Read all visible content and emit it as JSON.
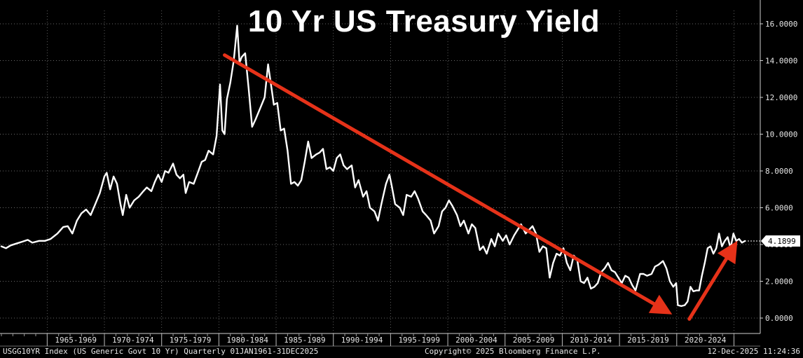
{
  "chart_data": {
    "type": "line",
    "title": "10 Yr US Treasury Yield",
    "x_range": [
      1961,
      2025.95
    ],
    "ylim": [
      0,
      17
    ],
    "y_ticks": [
      {
        "value": 0,
        "label": "0.0000"
      },
      {
        "value": 2,
        "label": "2.0000"
      },
      {
        "value": 4,
        "label": "4.0000"
      },
      {
        "value": 6,
        "label": "6.0000"
      },
      {
        "value": 8,
        "label": "8.0000"
      },
      {
        "value": 10,
        "label": "10.0000"
      },
      {
        "value": 12,
        "label": "12.0000"
      },
      {
        "value": 14,
        "label": "14.0000"
      },
      {
        "value": 16,
        "label": "16.0000"
      }
    ],
    "x_categories": [
      {
        "label": "1965-1969",
        "start": 1965,
        "end": 1970
      },
      {
        "label": "1970-1974",
        "start": 1970,
        "end": 1975
      },
      {
        "label": "1975-1979",
        "start": 1975,
        "end": 1980
      },
      {
        "label": "1980-1984",
        "start": 1980,
        "end": 1985
      },
      {
        "label": "1985-1989",
        "start": 1985,
        "end": 1990
      },
      {
        "label": "1990-1994",
        "start": 1990,
        "end": 1995
      },
      {
        "label": "1995-1999",
        "start": 1995,
        "end": 2000
      },
      {
        "label": "2000-2004",
        "start": 2000,
        "end": 2005
      },
      {
        "label": "2005-2009",
        "start": 2005,
        "end": 2010
      },
      {
        "label": "2010-2014",
        "start": 2010,
        "end": 2015
      },
      {
        "label": "2015-2019",
        "start": 2015,
        "end": 2020
      },
      {
        "label": "2020-2024",
        "start": 2020,
        "end": 2025
      }
    ],
    "grid": true,
    "series": [
      {
        "color": "#ffffff",
        "points": [
          [
            1961.0,
            3.9
          ],
          [
            1961.4,
            3.8
          ],
          [
            1961.8,
            3.95
          ],
          [
            1962.3,
            4.05
          ],
          [
            1962.8,
            4.15
          ],
          [
            1963.3,
            4.25
          ],
          [
            1963.7,
            4.1
          ],
          [
            1964.3,
            4.2
          ],
          [
            1964.8,
            4.2
          ],
          [
            1965.3,
            4.3
          ],
          [
            1965.9,
            4.6
          ],
          [
            1966.4,
            4.95
          ],
          [
            1966.8,
            5.0
          ],
          [
            1967.2,
            4.6
          ],
          [
            1967.6,
            5.3
          ],
          [
            1968.0,
            5.7
          ],
          [
            1968.4,
            5.9
          ],
          [
            1968.8,
            5.6
          ],
          [
            1969.2,
            6.2
          ],
          [
            1969.6,
            6.8
          ],
          [
            1970.0,
            7.7
          ],
          [
            1970.2,
            7.9
          ],
          [
            1970.5,
            7.0
          ],
          [
            1970.8,
            7.7
          ],
          [
            1971.1,
            7.3
          ],
          [
            1971.4,
            6.2
          ],
          [
            1971.6,
            5.6
          ],
          [
            1971.9,
            6.7
          ],
          [
            1972.2,
            6.0
          ],
          [
            1972.6,
            6.4
          ],
          [
            1973.0,
            6.6
          ],
          [
            1973.4,
            6.9
          ],
          [
            1973.7,
            7.1
          ],
          [
            1974.1,
            6.9
          ],
          [
            1974.4,
            7.4
          ],
          [
            1974.7,
            7.8
          ],
          [
            1975.0,
            7.4
          ],
          [
            1975.3,
            8.0
          ],
          [
            1975.6,
            7.9
          ],
          [
            1976.0,
            8.4
          ],
          [
            1976.3,
            7.8
          ],
          [
            1976.6,
            7.6
          ],
          [
            1976.9,
            7.8
          ],
          [
            1977.1,
            6.8
          ],
          [
            1977.4,
            7.4
          ],
          [
            1977.8,
            7.3
          ],
          [
            1978.1,
            7.8
          ],
          [
            1978.5,
            8.5
          ],
          [
            1978.8,
            8.6
          ],
          [
            1979.1,
            9.1
          ],
          [
            1979.5,
            8.9
          ],
          [
            1979.8,
            9.9
          ],
          [
            1980.1,
            12.7
          ],
          [
            1980.3,
            10.2
          ],
          [
            1980.5,
            10.0
          ],
          [
            1980.7,
            11.9
          ],
          [
            1981.0,
            12.8
          ],
          [
            1981.3,
            14.0
          ],
          [
            1981.6,
            15.9
          ],
          [
            1981.8,
            13.9
          ],
          [
            1982.0,
            14.2
          ],
          [
            1982.3,
            14.4
          ],
          [
            1982.6,
            12.5
          ],
          [
            1982.9,
            10.4
          ],
          [
            1983.2,
            10.8
          ],
          [
            1983.6,
            11.4
          ],
          [
            1984.0,
            12.0
          ],
          [
            1984.3,
            13.8
          ],
          [
            1984.6,
            12.5
          ],
          [
            1984.8,
            11.6
          ],
          [
            1985.1,
            11.7
          ],
          [
            1985.4,
            10.2
          ],
          [
            1985.7,
            10.3
          ],
          [
            1986.0,
            9.1
          ],
          [
            1986.3,
            7.3
          ],
          [
            1986.6,
            7.4
          ],
          [
            1986.9,
            7.2
          ],
          [
            1987.2,
            7.5
          ],
          [
            1987.5,
            8.5
          ],
          [
            1987.8,
            9.6
          ],
          [
            1988.1,
            8.7
          ],
          [
            1988.5,
            8.9
          ],
          [
            1988.8,
            9.0
          ],
          [
            1989.1,
            9.2
          ],
          [
            1989.4,
            8.1
          ],
          [
            1989.7,
            8.2
          ],
          [
            1990.0,
            8.0
          ],
          [
            1990.3,
            8.7
          ],
          [
            1990.6,
            8.9
          ],
          [
            1990.9,
            8.3
          ],
          [
            1991.2,
            8.1
          ],
          [
            1991.6,
            8.3
          ],
          [
            1991.9,
            7.1
          ],
          [
            1992.2,
            7.5
          ],
          [
            1992.6,
            6.6
          ],
          [
            1992.9,
            6.9
          ],
          [
            1993.2,
            6.0
          ],
          [
            1993.6,
            5.8
          ],
          [
            1993.9,
            5.3
          ],
          [
            1994.2,
            6.2
          ],
          [
            1994.6,
            7.3
          ],
          [
            1994.9,
            7.8
          ],
          [
            1995.1,
            7.2
          ],
          [
            1995.4,
            6.2
          ],
          [
            1995.8,
            6.0
          ],
          [
            1996.1,
            5.6
          ],
          [
            1996.4,
            6.7
          ],
          [
            1996.8,
            6.6
          ],
          [
            1997.1,
            6.9
          ],
          [
            1997.4,
            6.5
          ],
          [
            1997.8,
            5.8
          ],
          [
            1998.1,
            5.6
          ],
          [
            1998.5,
            5.3
          ],
          [
            1998.8,
            4.6
          ],
          [
            1999.2,
            5.0
          ],
          [
            1999.5,
            5.8
          ],
          [
            1999.8,
            6.0
          ],
          [
            2000.1,
            6.4
          ],
          [
            2000.4,
            6.1
          ],
          [
            2000.8,
            5.6
          ],
          [
            2001.1,
            5.0
          ],
          [
            2001.4,
            5.3
          ],
          [
            2001.8,
            4.6
          ],
          [
            2002.1,
            5.1
          ],
          [
            2002.4,
            4.9
          ],
          [
            2002.8,
            3.7
          ],
          [
            2003.1,
            3.9
          ],
          [
            2003.4,
            3.5
          ],
          [
            2003.8,
            4.3
          ],
          [
            2004.1,
            3.9
          ],
          [
            2004.4,
            4.6
          ],
          [
            2004.8,
            4.2
          ],
          [
            2005.1,
            4.5
          ],
          [
            2005.4,
            4.0
          ],
          [
            2005.8,
            4.5
          ],
          [
            2006.1,
            4.8
          ],
          [
            2006.4,
            5.1
          ],
          [
            2006.8,
            4.6
          ],
          [
            2007.1,
            4.8
          ],
          [
            2007.4,
            5.0
          ],
          [
            2007.7,
            4.6
          ],
          [
            2008.0,
            3.6
          ],
          [
            2008.3,
            3.9
          ],
          [
            2008.6,
            3.8
          ],
          [
            2008.9,
            2.2
          ],
          [
            2009.2,
            3.0
          ],
          [
            2009.5,
            3.5
          ],
          [
            2009.8,
            3.4
          ],
          [
            2010.1,
            3.8
          ],
          [
            2010.4,
            3.0
          ],
          [
            2010.7,
            2.6
          ],
          [
            2011.0,
            3.4
          ],
          [
            2011.3,
            3.2
          ],
          [
            2011.6,
            2.0
          ],
          [
            2011.9,
            1.9
          ],
          [
            2012.2,
            2.2
          ],
          [
            2012.5,
            1.6
          ],
          [
            2012.8,
            1.7
          ],
          [
            2013.1,
            1.9
          ],
          [
            2013.4,
            2.5
          ],
          [
            2013.7,
            2.7
          ],
          [
            2014.0,
            3.0
          ],
          [
            2014.3,
            2.6
          ],
          [
            2014.6,
            2.5
          ],
          [
            2014.9,
            2.2
          ],
          [
            2015.2,
            1.9
          ],
          [
            2015.5,
            2.3
          ],
          [
            2015.8,
            2.2
          ],
          [
            2016.1,
            1.8
          ],
          [
            2016.4,
            1.5
          ],
          [
            2016.8,
            2.4
          ],
          [
            2017.1,
            2.4
          ],
          [
            2017.4,
            2.3
          ],
          [
            2017.8,
            2.4
          ],
          [
            2018.1,
            2.8
          ],
          [
            2018.4,
            2.9
          ],
          [
            2018.8,
            3.1
          ],
          [
            2019.1,
            2.7
          ],
          [
            2019.4,
            2.0
          ],
          [
            2019.7,
            1.7
          ],
          [
            2019.95,
            1.9
          ],
          [
            2020.1,
            0.7
          ],
          [
            2020.4,
            0.65
          ],
          [
            2020.7,
            0.7
          ],
          [
            2020.95,
            0.9
          ],
          [
            2021.2,
            1.7
          ],
          [
            2021.45,
            1.45
          ],
          [
            2021.7,
            1.5
          ],
          [
            2021.95,
            1.5
          ],
          [
            2022.2,
            2.3
          ],
          [
            2022.45,
            3.0
          ],
          [
            2022.7,
            3.8
          ],
          [
            2022.95,
            3.9
          ],
          [
            2023.2,
            3.5
          ],
          [
            2023.45,
            3.8
          ],
          [
            2023.7,
            4.6
          ],
          [
            2023.95,
            3.9
          ],
          [
            2024.2,
            4.2
          ],
          [
            2024.45,
            4.4
          ],
          [
            2024.7,
            3.8
          ],
          [
            2024.95,
            4.6
          ],
          [
            2025.2,
            4.2
          ],
          [
            2025.45,
            4.3
          ],
          [
            2025.7,
            4.1
          ],
          [
            2025.95,
            4.19
          ]
        ]
      }
    ],
    "trend_arrows": [
      {
        "color": "#e63219",
        "from": [
          1980.5,
          14.3
        ],
        "to": [
          2019.6,
          0.2
        ]
      },
      {
        "color": "#e63219",
        "from": [
          2021.1,
          -0.05
        ],
        "to": [
          2025.3,
          4.2
        ]
      }
    ],
    "last_value": {
      "value": 4.1899,
      "label": "4.1899"
    }
  },
  "footer": {
    "left": "USGG10YR Index (US Generic Govt 10 Yr) Quarterly 01JAN1961-31DEC2025",
    "center": "Copyright© 2025 Bloomberg Finance L.P.",
    "right": "12-Dec-2025 11:24:36"
  },
  "colors": {
    "background": "#000000",
    "line": "#ffffff",
    "trend": "#e63219",
    "grid": "#ffffff"
  }
}
